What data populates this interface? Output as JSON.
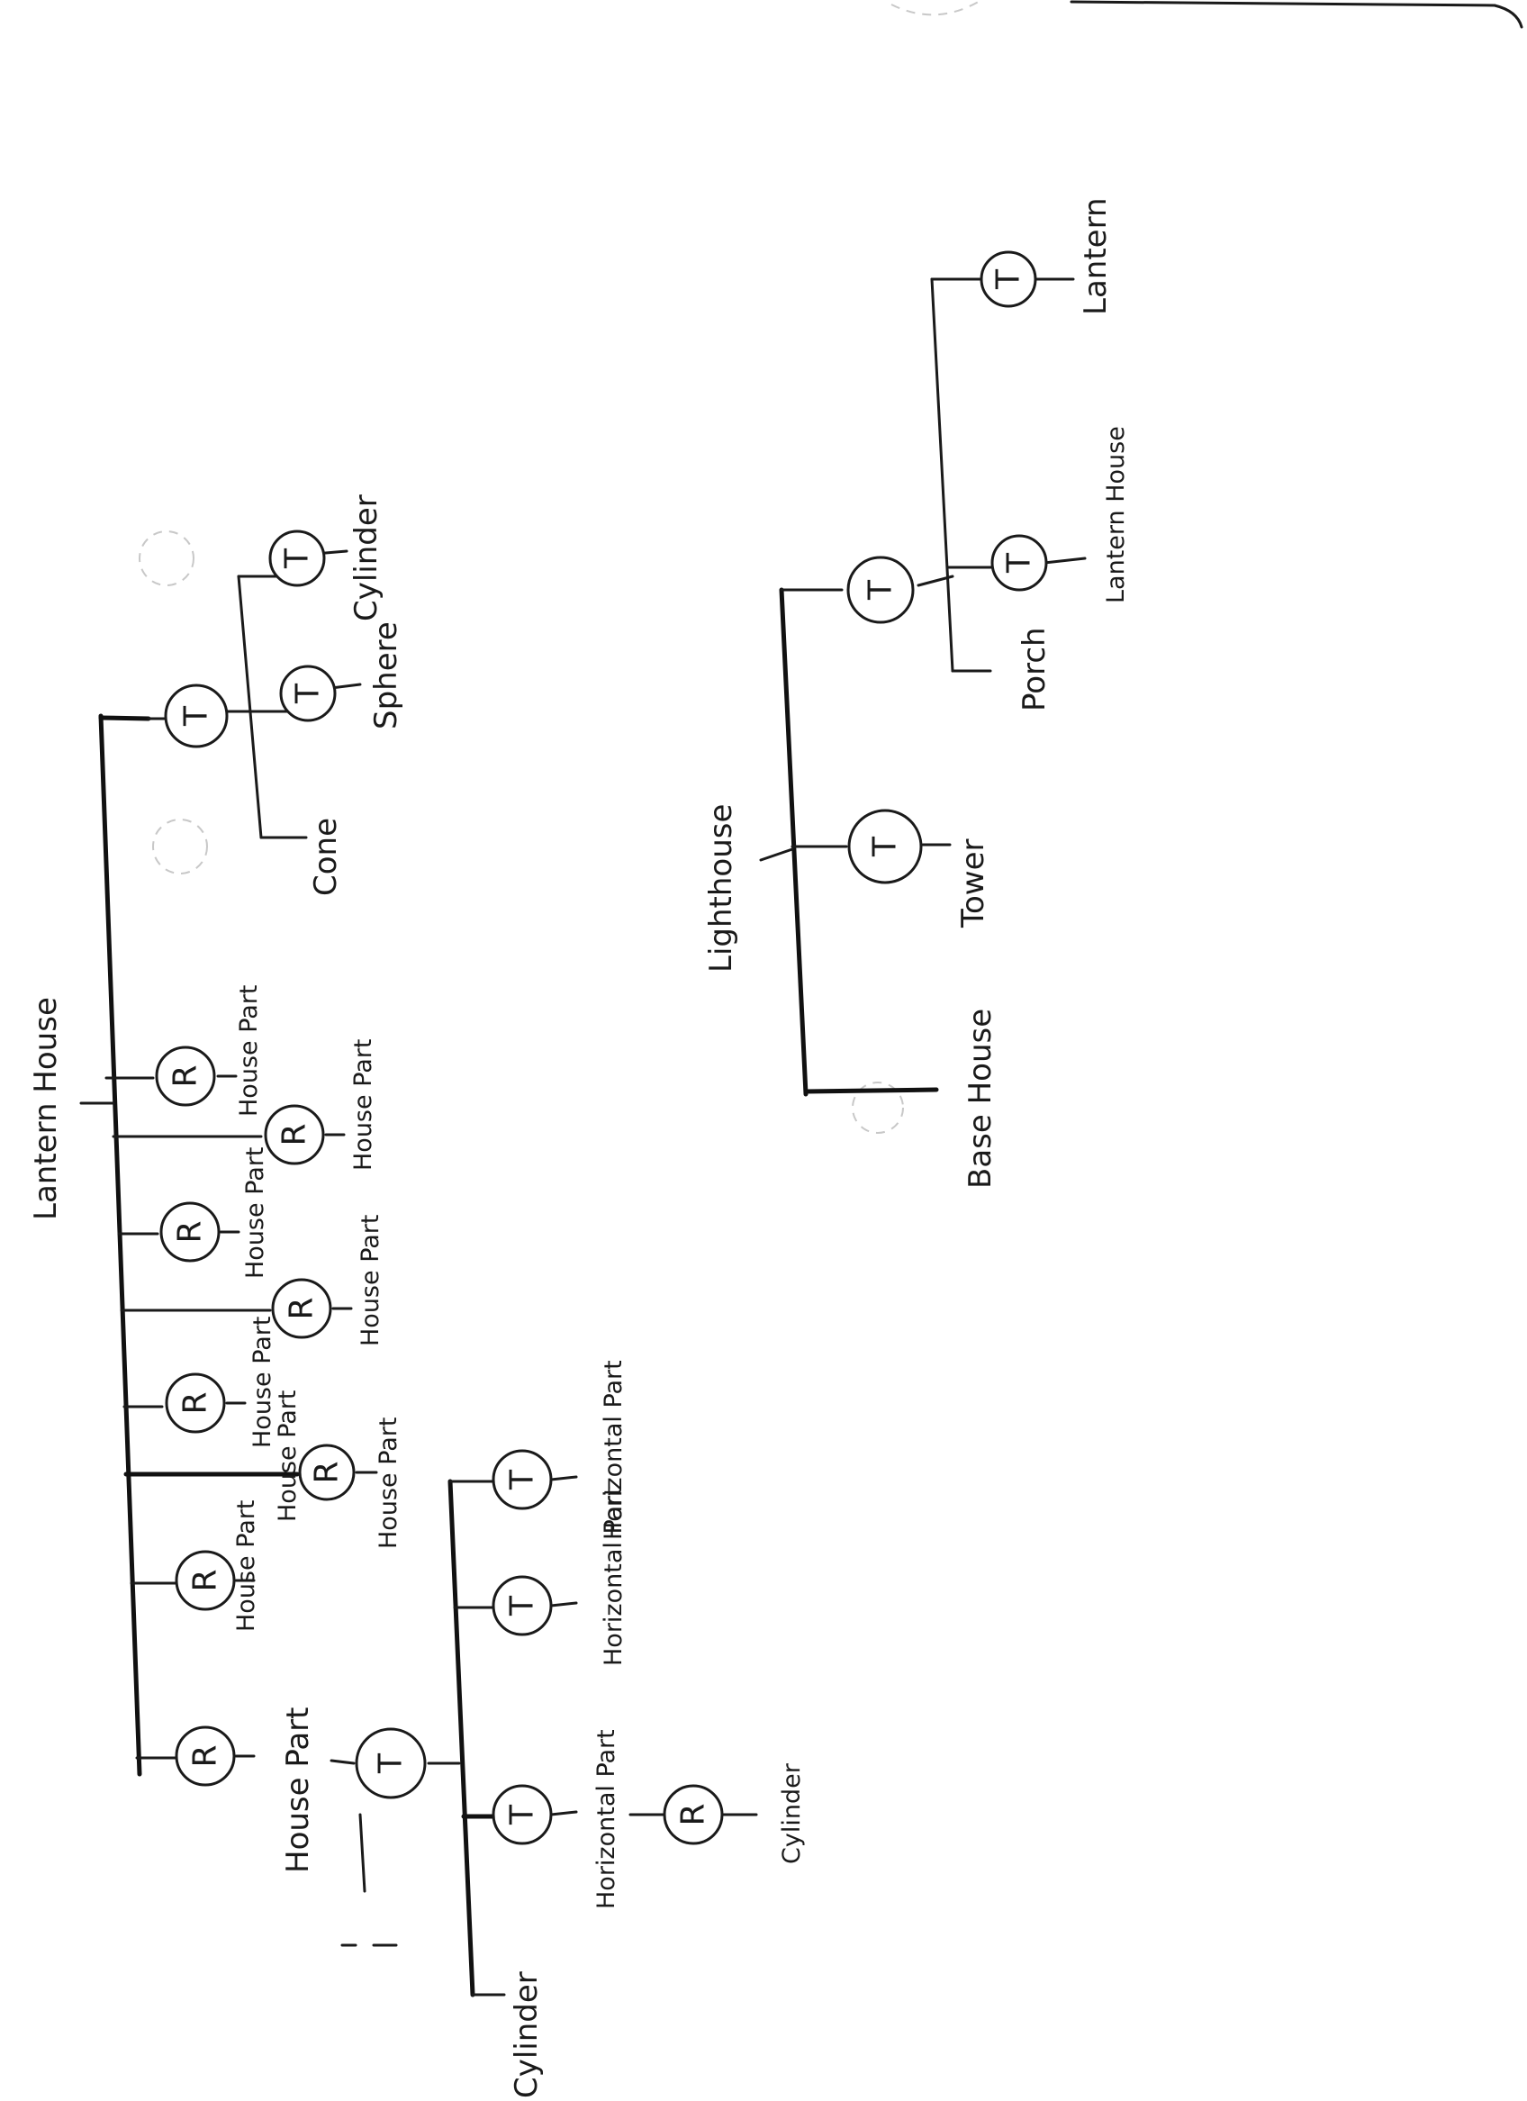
{
  "left_tree": {
    "root": "Lantern House",
    "house_parts": [
      "House Part",
      "House Part",
      "House Part",
      "House Part",
      "House Part",
      "House Part",
      "House Part",
      "House Part",
      "House Part"
    ],
    "horizontal_parts": [
      "Horizontal Part",
      "Horizontal Part",
      "Horizontal Part"
    ],
    "cylinders": [
      "Cylinder",
      "Cylinder",
      "Cylinder"
    ],
    "sphere": "Sphere",
    "cone": "Cone"
  },
  "right_tree": {
    "root": "Lighthouse",
    "base_house": "Base House",
    "tower": "Tower",
    "porch": "Porch",
    "lantern_house": "Lantern House",
    "lantern": "Lantern"
  },
  "node_letters": {
    "rotate": "R",
    "translate": "T"
  },
  "ink_color": "#1a1a1a"
}
